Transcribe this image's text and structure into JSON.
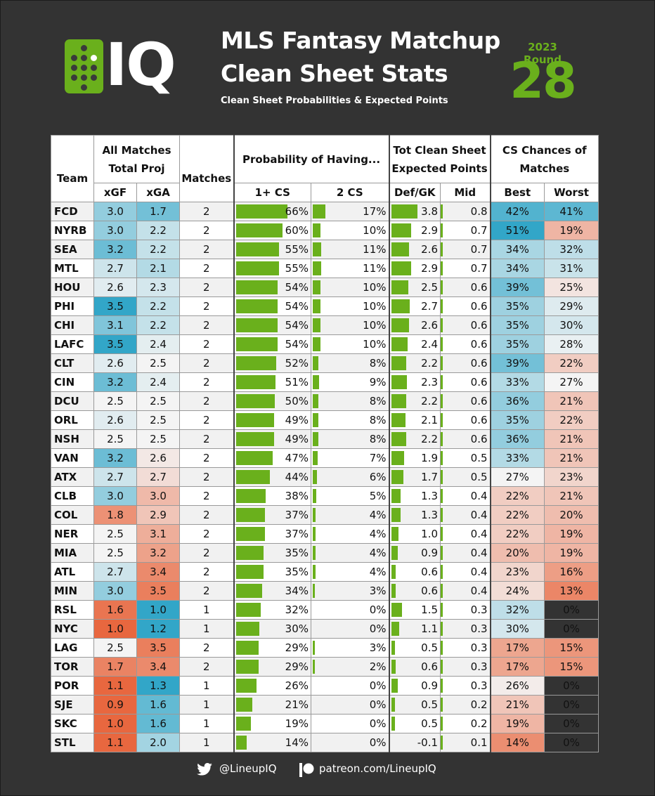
{
  "header": {
    "logo_text": "IQ",
    "title_line1": "MLS Fantasy Matchup",
    "title_line2": "Clean Sheet Stats",
    "subtitle": "Clean Sheet Probabilities & Expected Points",
    "round_label": "2023 Round",
    "round_number": "28"
  },
  "colors": {
    "accent_green": "#6ab01c",
    "background": "#333333",
    "good": "#32a6c8",
    "bad": "#e8673f"
  },
  "table": {
    "headers": {
      "team": "Team",
      "all_matches": [
        "All Matches",
        "Total Proj"
      ],
      "matches": "Matches",
      "probability": "Probability of Having...",
      "tot_cs": [
        "Tot Clean Sheet",
        "Expected Points"
      ],
      "cs_chances": [
        "CS Chances of",
        "Matches"
      ],
      "xgf": "xGF",
      "xga": "xGA",
      "cs1": "1+ CS",
      "cs2": "2 CS",
      "defgk": "Def/GK",
      "mid": "Mid",
      "best": "Best",
      "worst": "Worst"
    },
    "rows": [
      {
        "team": "FCD",
        "xgf": "3.0",
        "xga": "1.7",
        "matches": "2",
        "p1": "66%",
        "p2": "17%",
        "defgk": "3.8",
        "mid": "0.8",
        "best": "42%",
        "worst": "41%"
      },
      {
        "team": "NYRB",
        "xgf": "3.0",
        "xga": "2.2",
        "matches": "2",
        "p1": "60%",
        "p2": "10%",
        "defgk": "2.9",
        "mid": "0.7",
        "best": "51%",
        "worst": "19%"
      },
      {
        "team": "SEA",
        "xgf": "3.2",
        "xga": "2.2",
        "matches": "2",
        "p1": "55%",
        "p2": "11%",
        "defgk": "2.6",
        "mid": "0.7",
        "best": "34%",
        "worst": "32%"
      },
      {
        "team": "MTL",
        "xgf": "2.7",
        "xga": "2.1",
        "matches": "2",
        "p1": "55%",
        "p2": "11%",
        "defgk": "2.9",
        "mid": "0.7",
        "best": "34%",
        "worst": "31%"
      },
      {
        "team": "HOU",
        "xgf": "2.6",
        "xga": "2.3",
        "matches": "2",
        "p1": "54%",
        "p2": "10%",
        "defgk": "2.5",
        "mid": "0.6",
        "best": "39%",
        "worst": "25%"
      },
      {
        "team": "PHI",
        "xgf": "3.5",
        "xga": "2.2",
        "matches": "2",
        "p1": "54%",
        "p2": "10%",
        "defgk": "2.7",
        "mid": "0.6",
        "best": "35%",
        "worst": "29%"
      },
      {
        "team": "CHI",
        "xgf": "3.1",
        "xga": "2.2",
        "matches": "2",
        "p1": "54%",
        "p2": "10%",
        "defgk": "2.6",
        "mid": "0.6",
        "best": "35%",
        "worst": "30%"
      },
      {
        "team": "LAFC",
        "xgf": "3.5",
        "xga": "2.4",
        "matches": "2",
        "p1": "54%",
        "p2": "10%",
        "defgk": "2.4",
        "mid": "0.6",
        "best": "35%",
        "worst": "28%"
      },
      {
        "team": "CLT",
        "xgf": "2.6",
        "xga": "2.5",
        "matches": "2",
        "p1": "52%",
        "p2": "8%",
        "defgk": "2.2",
        "mid": "0.6",
        "best": "39%",
        "worst": "22%"
      },
      {
        "team": "CIN",
        "xgf": "3.2",
        "xga": "2.4",
        "matches": "2",
        "p1": "51%",
        "p2": "9%",
        "defgk": "2.3",
        "mid": "0.6",
        "best": "33%",
        "worst": "27%"
      },
      {
        "team": "DCU",
        "xgf": "2.5",
        "xga": "2.5",
        "matches": "2",
        "p1": "50%",
        "p2": "8%",
        "defgk": "2.2",
        "mid": "0.6",
        "best": "36%",
        "worst": "21%"
      },
      {
        "team": "ORL",
        "xgf": "2.6",
        "xga": "2.5",
        "matches": "2",
        "p1": "49%",
        "p2": "8%",
        "defgk": "2.1",
        "mid": "0.6",
        "best": "35%",
        "worst": "22%"
      },
      {
        "team": "NSH",
        "xgf": "2.5",
        "xga": "2.5",
        "matches": "2",
        "p1": "49%",
        "p2": "8%",
        "defgk": "2.2",
        "mid": "0.6",
        "best": "36%",
        "worst": "21%"
      },
      {
        "team": "VAN",
        "xgf": "3.2",
        "xga": "2.6",
        "matches": "2",
        "p1": "47%",
        "p2": "7%",
        "defgk": "1.9",
        "mid": "0.5",
        "best": "33%",
        "worst": "21%"
      },
      {
        "team": "ATX",
        "xgf": "2.7",
        "xga": "2.7",
        "matches": "2",
        "p1": "44%",
        "p2": "6%",
        "defgk": "1.7",
        "mid": "0.5",
        "best": "27%",
        "worst": "23%"
      },
      {
        "team": "CLB",
        "xgf": "3.0",
        "xga": "3.0",
        "matches": "2",
        "p1": "38%",
        "p2": "5%",
        "defgk": "1.3",
        "mid": "0.4",
        "best": "22%",
        "worst": "21%"
      },
      {
        "team": "COL",
        "xgf": "1.8",
        "xga": "2.9",
        "matches": "2",
        "p1": "37%",
        "p2": "4%",
        "defgk": "1.3",
        "mid": "0.4",
        "best": "22%",
        "worst": "20%"
      },
      {
        "team": "NER",
        "xgf": "2.5",
        "xga": "3.1",
        "matches": "2",
        "p1": "37%",
        "p2": "4%",
        "defgk": "1.0",
        "mid": "0.4",
        "best": "22%",
        "worst": "19%"
      },
      {
        "team": "MIA",
        "xgf": "2.5",
        "xga": "3.2",
        "matches": "2",
        "p1": "35%",
        "p2": "4%",
        "defgk": "0.9",
        "mid": "0.4",
        "best": "20%",
        "worst": "19%"
      },
      {
        "team": "ATL",
        "xgf": "2.7",
        "xga": "3.4",
        "matches": "2",
        "p1": "35%",
        "p2": "4%",
        "defgk": "0.6",
        "mid": "0.4",
        "best": "23%",
        "worst": "16%"
      },
      {
        "team": "MIN",
        "xgf": "3.0",
        "xga": "3.5",
        "matches": "2",
        "p1": "34%",
        "p2": "3%",
        "defgk": "0.6",
        "mid": "0.4",
        "best": "24%",
        "worst": "13%"
      },
      {
        "team": "RSL",
        "xgf": "1.6",
        "xga": "1.0",
        "matches": "1",
        "p1": "32%",
        "p2": "0%",
        "defgk": "1.5",
        "mid": "0.3",
        "best": "32%",
        "worst": "0%"
      },
      {
        "team": "NYC",
        "xgf": "1.0",
        "xga": "1.2",
        "matches": "1",
        "p1": "30%",
        "p2": "0%",
        "defgk": "1.1",
        "mid": "0.3",
        "best": "30%",
        "worst": "0%"
      },
      {
        "team": "LAG",
        "xgf": "2.5",
        "xga": "3.5",
        "matches": "2",
        "p1": "29%",
        "p2": "3%",
        "defgk": "0.5",
        "mid": "0.3",
        "best": "17%",
        "worst": "15%"
      },
      {
        "team": "TOR",
        "xgf": "1.7",
        "xga": "3.4",
        "matches": "2",
        "p1": "29%",
        "p2": "2%",
        "defgk": "0.6",
        "mid": "0.3",
        "best": "17%",
        "worst": "15%"
      },
      {
        "team": "POR",
        "xgf": "1.1",
        "xga": "1.3",
        "matches": "1",
        "p1": "26%",
        "p2": "0%",
        "defgk": "0.9",
        "mid": "0.3",
        "best": "26%",
        "worst": "0%"
      },
      {
        "team": "SJE",
        "xgf": "0.9",
        "xga": "1.6",
        "matches": "1",
        "p1": "21%",
        "p2": "0%",
        "defgk": "0.5",
        "mid": "0.2",
        "best": "21%",
        "worst": "0%"
      },
      {
        "team": "SKC",
        "xgf": "1.0",
        "xga": "1.6",
        "matches": "1",
        "p1": "19%",
        "p2": "0%",
        "defgk": "0.5",
        "mid": "0.2",
        "best": "19%",
        "worst": "0%"
      },
      {
        "team": "STL",
        "xgf": "1.1",
        "xga": "2.0",
        "matches": "1",
        "p1": "14%",
        "p2": "0%",
        "defgk": "-0.1",
        "mid": "0.1",
        "best": "14%",
        "worst": "0%"
      }
    ]
  },
  "footer": {
    "twitter_icon": "twitter-bird-icon",
    "twitter_handle": "@LineupIQ",
    "patreon_icon": "patreon-icon",
    "patreon_url": "patreon.com/LineupIQ"
  }
}
